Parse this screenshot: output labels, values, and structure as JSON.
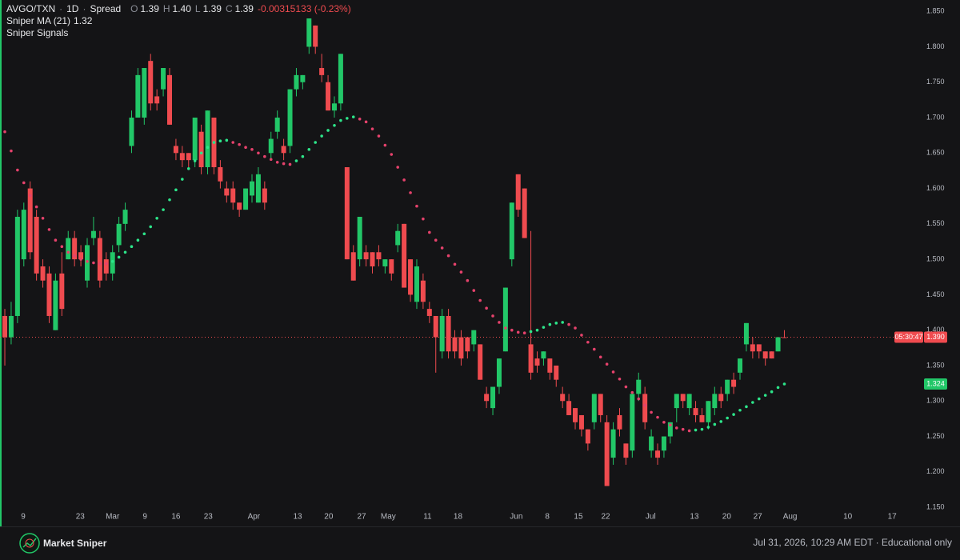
{
  "header": {
    "symbol": "AVGO/TXN",
    "separator": "·",
    "interval": "1D",
    "source": "Spread",
    "ohlc": [
      {
        "key": "O",
        "value": "1.39"
      },
      {
        "key": "H",
        "value": "1.40"
      },
      {
        "key": "L",
        "value": "1.39"
      },
      {
        "key": "C",
        "value": "1.39"
      }
    ],
    "change": "-0.00315133 (-0.23%)",
    "indicators": [
      {
        "name": "Sniper MA (21)",
        "value": "1.32"
      },
      {
        "name": "Sniper Signals"
      }
    ]
  },
  "chart_data": {
    "type": "candlestick",
    "up_color": "#22c768",
    "down_color": "#ef4b4f",
    "x": [
      0,
      1,
      2,
      3,
      4,
      5,
      6,
      7,
      8,
      9,
      10,
      11,
      12,
      13,
      14,
      15,
      16,
      17,
      18,
      19,
      20,
      21,
      22,
      23,
      24,
      25,
      26,
      27,
      28,
      29,
      30,
      31,
      32,
      33,
      34,
      35,
      36,
      37,
      38,
      39,
      40,
      41,
      42,
      43,
      44,
      45,
      46,
      47,
      48,
      49,
      50,
      51,
      52,
      53,
      54,
      55,
      56,
      57,
      58,
      59,
      60,
      61,
      62,
      63,
      64,
      65,
      66,
      67,
      68,
      69,
      70,
      71,
      72,
      73,
      74,
      75,
      76,
      77,
      78,
      79,
      80,
      81,
      82,
      83,
      84,
      85,
      86,
      87,
      88,
      89,
      90,
      91,
      92,
      93,
      94,
      95,
      96,
      97,
      98,
      99,
      100,
      101,
      102,
      103,
      104,
      105,
      106,
      107,
      108,
      109,
      110,
      111,
      112,
      113,
      114,
      115,
      116,
      117,
      118,
      119,
      120,
      121,
      122,
      123
    ],
    "open": [
      1.42,
      1.39,
      1.42,
      1.5,
      1.6,
      1.56,
      1.49,
      1.48,
      1.4,
      1.48,
      1.5,
      1.53,
      1.51,
      1.47,
      1.53,
      1.53,
      1.5,
      1.48,
      1.52,
      1.55,
      1.66,
      1.7,
      1.7,
      1.78,
      1.73,
      1.74,
      1.76,
      1.66,
      1.65,
      1.65,
      1.64,
      1.68,
      1.63,
      1.7,
      1.63,
      1.6,
      1.6,
      1.58,
      1.57,
      1.59,
      1.58,
      1.6,
      1.65,
      1.68,
      1.66,
      1.66,
      1.74,
      1.75,
      1.8,
      1.83,
      1.77,
      1.75,
      1.71,
      1.72,
      1.63,
      1.51,
      1.5,
      1.51,
      1.51,
      1.51,
      1.49,
      1.5,
      1.52,
      1.55,
      1.5,
      1.44,
      1.47,
      1.43,
      1.42,
      1.37,
      1.42,
      1.39,
      1.39,
      1.39,
      1.38,
      1.38,
      1.31,
      1.29,
      1.32,
      1.37,
      1.5,
      1.62,
      1.6,
      1.38,
      1.36,
      1.36,
      1.36,
      1.35,
      1.31,
      1.3,
      1.29,
      1.28,
      1.26,
      1.27,
      1.31,
      1.27,
      1.22,
      1.28,
      1.24,
      1.23,
      1.31,
      1.31,
      1.23,
      1.23,
      1.23,
      1.25,
      1.29,
      1.31,
      1.29,
      1.29,
      1.28,
      1.27,
      1.29,
      1.31,
      1.31,
      1.33,
      1.34,
      1.38,
      1.38,
      1.38,
      1.37,
      1.37,
      1.37,
      1.39
    ],
    "high": [
      1.43,
      1.44,
      1.57,
      1.58,
      1.61,
      1.57,
      1.5,
      1.49,
      1.48,
      1.51,
      1.54,
      1.54,
      1.52,
      1.53,
      1.56,
      1.54,
      1.51,
      1.52,
      1.56,
      1.58,
      1.71,
      1.77,
      1.77,
      1.79,
      1.74,
      1.77,
      1.77,
      1.67,
      1.66,
      1.65,
      1.7,
      1.69,
      1.71,
      1.7,
      1.64,
      1.61,
      1.61,
      1.58,
      1.6,
      1.62,
      1.63,
      1.61,
      1.68,
      1.71,
      1.67,
      1.74,
      1.77,
      1.76,
      1.84,
      1.83,
      1.79,
      1.76,
      1.73,
      1.79,
      1.63,
      1.52,
      1.56,
      1.52,
      1.51,
      1.52,
      1.5,
      1.5,
      1.55,
      1.55,
      1.5,
      1.5,
      1.48,
      1.44,
      1.42,
      1.43,
      1.43,
      1.4,
      1.4,
      1.39,
      1.4,
      1.38,
      1.32,
      1.32,
      1.36,
      1.46,
      1.58,
      1.62,
      1.6,
      1.54,
      1.37,
      1.37,
      1.36,
      1.35,
      1.32,
      1.31,
      1.29,
      1.28,
      1.26,
      1.31,
      1.31,
      1.28,
      1.27,
      1.29,
      1.24,
      1.31,
      1.34,
      1.32,
      1.26,
      1.24,
      1.25,
      1.27,
      1.31,
      1.31,
      1.31,
      1.3,
      1.29,
      1.3,
      1.32,
      1.32,
      1.33,
      1.34,
      1.36,
      1.41,
      1.39,
      1.38,
      1.37,
      1.37,
      1.39,
      1.4
    ],
    "low": [
      1.35,
      1.38,
      1.41,
      1.49,
      1.5,
      1.47,
      1.46,
      1.41,
      1.4,
      1.42,
      1.5,
      1.49,
      1.49,
      1.46,
      1.52,
      1.46,
      1.47,
      1.47,
      1.51,
      1.54,
      1.65,
      1.7,
      1.69,
      1.71,
      1.71,
      1.73,
      1.69,
      1.64,
      1.63,
      1.63,
      1.63,
      1.62,
      1.62,
      1.62,
      1.6,
      1.58,
      1.57,
      1.56,
      1.57,
      1.58,
      1.58,
      1.57,
      1.64,
      1.67,
      1.64,
      1.65,
      1.73,
      1.74,
      1.79,
      1.79,
      1.75,
      1.71,
      1.7,
      1.71,
      1.5,
      1.47,
      1.49,
      1.49,
      1.48,
      1.49,
      1.48,
      1.47,
      1.51,
      1.46,
      1.44,
      1.43,
      1.43,
      1.41,
      1.34,
      1.36,
      1.36,
      1.36,
      1.35,
      1.36,
      1.37,
      1.33,
      1.29,
      1.28,
      1.31,
      1.37,
      1.49,
      1.56,
      1.53,
      1.33,
      1.34,
      1.35,
      1.33,
      1.32,
      1.29,
      1.28,
      1.26,
      1.25,
      1.23,
      1.26,
      1.27,
      1.18,
      1.21,
      1.25,
      1.21,
      1.22,
      1.3,
      1.26,
      1.22,
      1.21,
      1.22,
      1.24,
      1.27,
      1.29,
      1.28,
      1.27,
      1.27,
      1.26,
      1.28,
      1.29,
      1.3,
      1.31,
      1.33,
      1.37,
      1.36,
      1.36,
      1.35,
      1.36,
      1.37,
      1.39
    ],
    "close": [
      1.39,
      1.42,
      1.56,
      1.57,
      1.51,
      1.48,
      1.47,
      1.42,
      1.47,
      1.43,
      1.53,
      1.5,
      1.5,
      1.52,
      1.54,
      1.47,
      1.48,
      1.51,
      1.55,
      1.57,
      1.7,
      1.76,
      1.77,
      1.72,
      1.72,
      1.77,
      1.69,
      1.65,
      1.64,
      1.64,
      1.7,
      1.63,
      1.71,
      1.63,
      1.61,
      1.59,
      1.58,
      1.57,
      1.6,
      1.61,
      1.62,
      1.58,
      1.67,
      1.7,
      1.65,
      1.74,
      1.76,
      1.76,
      1.84,
      1.8,
      1.76,
      1.71,
      1.72,
      1.79,
      1.5,
      1.47,
      1.56,
      1.5,
      1.49,
      1.5,
      1.5,
      1.48,
      1.54,
      1.46,
      1.45,
      1.49,
      1.44,
      1.42,
      1.39,
      1.42,
      1.37,
      1.37,
      1.36,
      1.37,
      1.4,
      1.33,
      1.3,
      1.32,
      1.36,
      1.46,
      1.58,
      1.57,
      1.53,
      1.34,
      1.35,
      1.37,
      1.34,
      1.33,
      1.3,
      1.28,
      1.27,
      1.26,
      1.24,
      1.31,
      1.28,
      1.18,
      1.26,
      1.26,
      1.22,
      1.31,
      1.33,
      1.27,
      1.25,
      1.22,
      1.25,
      1.27,
      1.31,
      1.3,
      1.31,
      1.28,
      1.27,
      1.3,
      1.31,
      1.3,
      1.33,
      1.32,
      1.36,
      1.41,
      1.37,
      1.37,
      1.36,
      1.36,
      1.39,
      1.39
    ],
    "series": [
      {
        "name": "Sniper MA (21)",
        "rise_color": "#2de58a",
        "fall_color": "#e6426c",
        "values": [
          1.68,
          1.653,
          1.626,
          1.608,
          1.59,
          1.574,
          1.558,
          1.542,
          1.527,
          1.518,
          1.51,
          1.505,
          1.5,
          1.497,
          1.495,
          1.494,
          1.494,
          1.497,
          1.503,
          1.51,
          1.518,
          1.527,
          1.536,
          1.546,
          1.558,
          1.57,
          1.584,
          1.598,
          1.613,
          1.628,
          1.639,
          1.65,
          1.658,
          1.665,
          1.667,
          1.668,
          1.665,
          1.662,
          1.658,
          1.655,
          1.65,
          1.645,
          1.641,
          1.637,
          1.635,
          1.634,
          1.639,
          1.645,
          1.655,
          1.665,
          1.674,
          1.682,
          1.689,
          1.696,
          1.699,
          1.701,
          1.698,
          1.694,
          1.684,
          1.674,
          1.661,
          1.648,
          1.63,
          1.612,
          1.594,
          1.575,
          1.557,
          1.538,
          1.527,
          1.516,
          1.505,
          1.493,
          1.482,
          1.47,
          1.456,
          1.442,
          1.431,
          1.42,
          1.411,
          1.403,
          1.4,
          1.397,
          1.396,
          1.398,
          1.4,
          1.404,
          1.408,
          1.41,
          1.411,
          1.408,
          1.403,
          1.393,
          1.383,
          1.373,
          1.362,
          1.352,
          1.341,
          1.331,
          1.32,
          1.312,
          1.303,
          1.294,
          1.284,
          1.277,
          1.27,
          1.266,
          1.262,
          1.26,
          1.258,
          1.259,
          1.26,
          1.263,
          1.267,
          1.271,
          1.276,
          1.281,
          1.287,
          1.292,
          1.298,
          1.303,
          1.308,
          1.313,
          1.319,
          1.324
        ]
      }
    ],
    "price_labels": [
      {
        "value": 1.39,
        "time": "05:30:47",
        "label": "1.390",
        "color": "#ef4b4f"
      },
      {
        "value": 1.324,
        "label": "1.324",
        "color": "#22c768"
      }
    ],
    "xlim": [
      -0.76,
      144.4
    ],
    "xticks": [
      {
        "value": 2.9,
        "label": "9"
      },
      {
        "value": 11.9,
        "label": "23"
      },
      {
        "value": 17,
        "label": "Mar"
      },
      {
        "value": 22.1,
        "label": "9"
      },
      {
        "value": 27,
        "label": "16"
      },
      {
        "value": 32.1,
        "label": "23"
      },
      {
        "value": 39.3,
        "label": "Apr"
      },
      {
        "value": 46.2,
        "label": "13"
      },
      {
        "value": 51.1,
        "label": "20"
      },
      {
        "value": 56.3,
        "label": "27"
      },
      {
        "value": 60.5,
        "label": "May"
      },
      {
        "value": 66.7,
        "label": "11"
      },
      {
        "value": 71.5,
        "label": "18"
      },
      {
        "value": 80.7,
        "label": "Jun"
      },
      {
        "value": 85.6,
        "label": "8"
      },
      {
        "value": 90.5,
        "label": "15"
      },
      {
        "value": 94.8,
        "label": "22"
      },
      {
        "value": 101.9,
        "label": "Jul"
      },
      {
        "value": 108.8,
        "label": "13"
      },
      {
        "value": 113.9,
        "label": "20"
      },
      {
        "value": 118.8,
        "label": "27"
      },
      {
        "value": 123.9,
        "label": "Aug"
      },
      {
        "value": 133,
        "label": "10"
      },
      {
        "value": 140,
        "label": "17"
      }
    ],
    "ylim": [
      1.123,
      1.866
    ],
    "yticks": [
      {
        "value": 1.15,
        "label": "1.150"
      },
      {
        "value": 1.2,
        "label": "1.200"
      },
      {
        "value": 1.25,
        "label": "1.250"
      },
      {
        "value": 1.3,
        "label": "1.300"
      },
      {
        "value": 1.35,
        "label": "1.350"
      },
      {
        "value": 1.4,
        "label": "1.400"
      },
      {
        "value": 1.45,
        "label": "1.450"
      },
      {
        "value": 1.5,
        "label": "1.500"
      },
      {
        "value": 1.55,
        "label": "1.550"
      },
      {
        "value": 1.6,
        "label": "1.600"
      },
      {
        "value": 1.65,
        "label": "1.650"
      },
      {
        "value": 1.7,
        "label": "1.700"
      },
      {
        "value": 1.75,
        "label": "1.750"
      },
      {
        "value": 1.8,
        "label": "1.800"
      },
      {
        "value": 1.85,
        "label": "1.850"
      }
    ],
    "grid": false
  },
  "footer": {
    "brand": "Market Sniper",
    "timestamp": "Jul 31, 2026, 10:29 AM EDT · Educational only"
  }
}
